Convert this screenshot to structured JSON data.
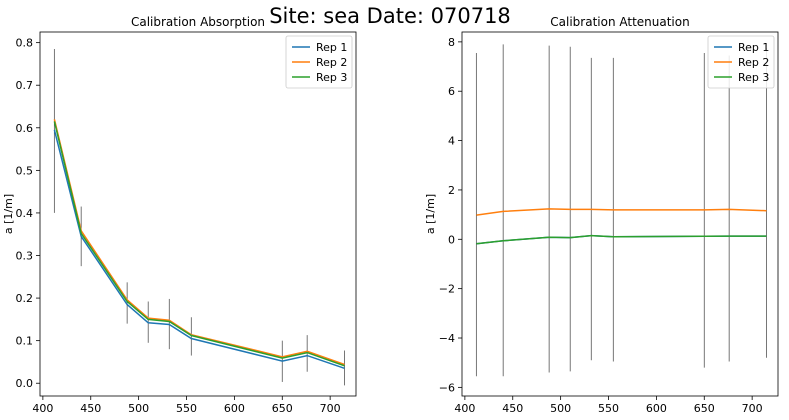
{
  "figure": {
    "suptitle": "Site: sea Date: 070718"
  },
  "chart_data": [
    {
      "type": "line",
      "title": "Calibration Absorption",
      "xlabel": "",
      "ylabel": "a [1/m]",
      "xlim": [
        397,
        727
      ],
      "ylim": [
        -0.03,
        0.825
      ],
      "xticks": [
        400,
        450,
        500,
        550,
        600,
        650,
        700
      ],
      "yticks": [
        0.0,
        0.1,
        0.2,
        0.3,
        0.4,
        0.5,
        0.6,
        0.7,
        0.8
      ],
      "ytick_labels": [
        "0.0",
        "0.1",
        "0.2",
        "0.3",
        "0.4",
        "0.5",
        "0.6",
        "0.7",
        "0.8"
      ],
      "legend_position": "upper right",
      "x": [
        412,
        440,
        488,
        510,
        532,
        555,
        650,
        676,
        715
      ],
      "series": [
        {
          "name": "Rep 1",
          "color": "#1f77b4",
          "values": [
            0.595,
            0.345,
            0.185,
            0.142,
            0.138,
            0.105,
            0.052,
            0.065,
            0.035
          ]
        },
        {
          "name": "Rep 2",
          "color": "#ff7f0e",
          "values": [
            0.62,
            0.358,
            0.196,
            0.153,
            0.148,
            0.114,
            0.062,
            0.075,
            0.044
          ]
        },
        {
          "name": "Rep 3",
          "color": "#2ca02c",
          "values": [
            0.615,
            0.352,
            0.192,
            0.15,
            0.145,
            0.112,
            0.059,
            0.072,
            0.041
          ]
        }
      ],
      "error_bars": {
        "color": "#555555",
        "low": [
          0.4,
          0.275,
          0.14,
          0.095,
          0.08,
          0.065,
          0.003,
          0.027,
          -0.005
        ],
        "high": [
          0.785,
          0.415,
          0.237,
          0.192,
          0.198,
          0.155,
          0.1,
          0.113,
          0.077
        ]
      }
    },
    {
      "type": "line",
      "title": "Calibration Attenuation",
      "xlabel": "",
      "ylabel": "a [1/m]",
      "xlim": [
        397,
        727
      ],
      "ylim": [
        -6.35,
        8.4
      ],
      "xticks": [
        400,
        450,
        500,
        550,
        600,
        650,
        700
      ],
      "yticks": [
        -6,
        -4,
        -2,
        0,
        2,
        4,
        6,
        8
      ],
      "ytick_labels": [
        "−6",
        "−4",
        "−2",
        "0",
        "2",
        "4",
        "6",
        "8"
      ],
      "legend_position": "upper right",
      "x": [
        412,
        440,
        488,
        510,
        532,
        555,
        650,
        676,
        715
      ],
      "series": [
        {
          "name": "Rep 1",
          "color": "#1f77b4",
          "values": [
            -0.18,
            -0.06,
            0.08,
            0.07,
            0.15,
            0.1,
            0.12,
            0.13,
            0.13
          ]
        },
        {
          "name": "Rep 2",
          "color": "#ff7f0e",
          "values": [
            0.98,
            1.13,
            1.23,
            1.21,
            1.21,
            1.19,
            1.19,
            1.21,
            1.16
          ]
        },
        {
          "name": "Rep 3",
          "color": "#2ca02c",
          "values": [
            -0.18,
            -0.06,
            0.08,
            0.07,
            0.15,
            0.1,
            0.12,
            0.13,
            0.13
          ]
        }
      ],
      "error_bars": {
        "color": "#555555",
        "low": [
          -5.55,
          -5.55,
          -5.4,
          -5.35,
          -4.9,
          -4.95,
          -5.2,
          -4.95,
          -4.8
        ],
        "high": [
          7.55,
          7.9,
          7.85,
          7.8,
          7.35,
          7.35,
          7.55,
          7.45,
          7.75
        ]
      }
    }
  ]
}
